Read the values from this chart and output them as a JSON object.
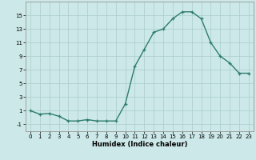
{
  "x": [
    0,
    1,
    2,
    3,
    4,
    5,
    6,
    7,
    8,
    9,
    10,
    11,
    12,
    13,
    14,
    15,
    16,
    17,
    18,
    19,
    20,
    21,
    22,
    23
  ],
  "y": [
    1,
    0.5,
    0.6,
    0.2,
    -0.5,
    -0.5,
    -0.3,
    -0.5,
    -0.5,
    -0.5,
    2,
    7.5,
    10,
    12.5,
    13,
    14.5,
    15.5,
    15.5,
    14.5,
    11,
    9,
    8,
    6.5,
    6.5
  ],
  "line_color": "#2e7d6e",
  "marker": "+",
  "bg_color": "#cce8e8",
  "grid_color": "#aacccc",
  "xlabel": "Humidex (Indice chaleur)",
  "xlim": [
    -0.5,
    23.5
  ],
  "ylim": [
    -2,
    17
  ],
  "yticks": [
    -1,
    1,
    3,
    5,
    7,
    9,
    11,
    13,
    15
  ],
  "xticks": [
    0,
    1,
    2,
    3,
    4,
    5,
    6,
    7,
    8,
    9,
    10,
    11,
    12,
    13,
    14,
    15,
    16,
    17,
    18,
    19,
    20,
    21,
    22,
    23
  ],
  "tick_fontsize": 5.0,
  "xlabel_fontsize": 6.0,
  "line_width": 1.0,
  "marker_size": 3.5
}
